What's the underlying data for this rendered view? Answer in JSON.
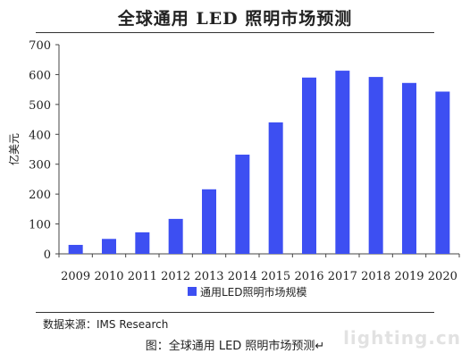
{
  "title": "全球通用 LED 照明市场预测",
  "source": "数据来源：IMS Research",
  "caption": "图：全球通用 LED 照明市场预测↵",
  "watermark": "lighting.cn",
  "chart_data": {
    "type": "bar",
    "title": "全球通用 LED 照明市场预测",
    "ylabel": "亿美元",
    "xlabel": "",
    "categories": [
      "2009",
      "2010",
      "2011",
      "2012",
      "2013",
      "2014",
      "2015",
      "2016",
      "2017",
      "2018",
      "2019",
      "2020"
    ],
    "series": [
      {
        "name": "通用LED照明市场规模",
        "values": [
          30,
          50,
          72,
          117,
          216,
          332,
          440,
          590,
          613,
          592,
          572,
          543
        ]
      }
    ],
    "ylim": [
      0,
      700
    ],
    "yticks": [
      0,
      100,
      200,
      300,
      400,
      500,
      600,
      700
    ],
    "grid": false,
    "legend": "bottom",
    "colors": {
      "bar": "#3d4ff2"
    }
  }
}
